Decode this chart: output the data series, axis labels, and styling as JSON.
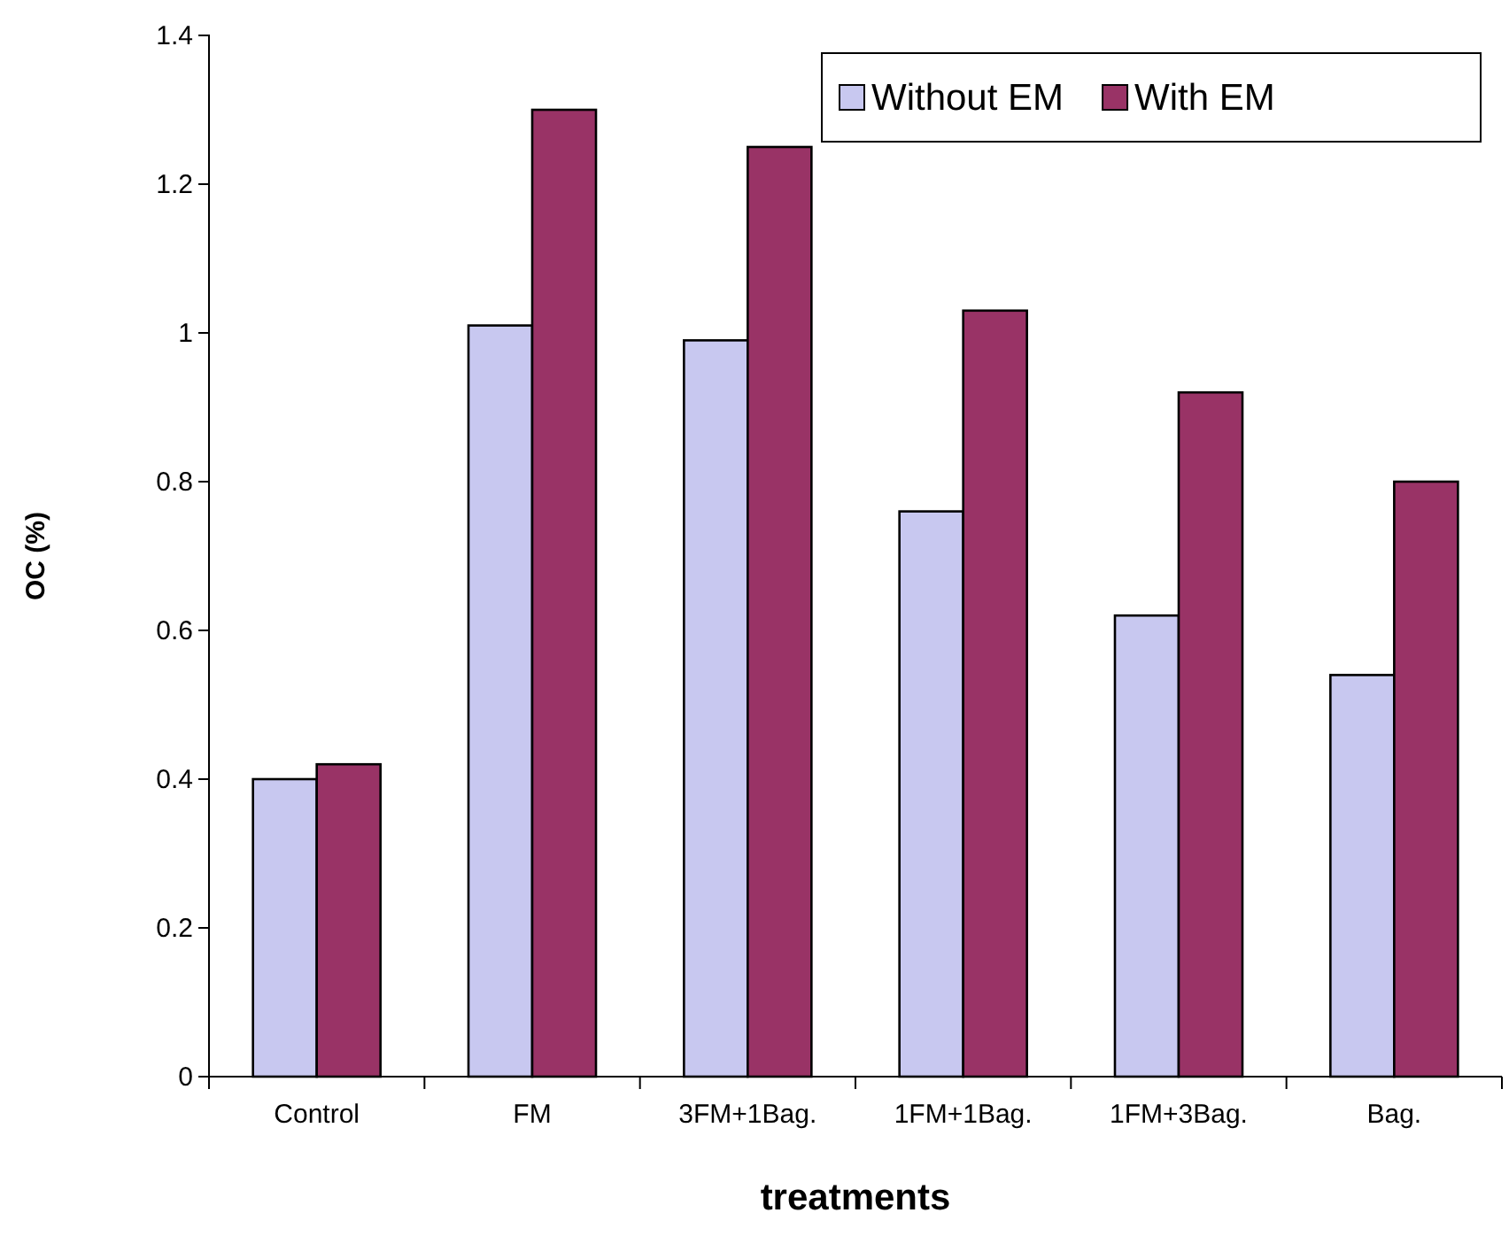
{
  "chart_data": {
    "type": "bar",
    "xlabel": "treatments",
    "ylabel": "OC (%)",
    "categories": [
      "Control",
      "FM",
      "3FM+1Bag.",
      "1FM+1Bag.",
      "1FM+3Bag.",
      "Bag."
    ],
    "series": [
      {
        "name": "Without EM",
        "color": "#c8c8f0",
        "values": [
          0.4,
          1.01,
          0.99,
          0.76,
          0.62,
          0.54
        ]
      },
      {
        "name": "With EM",
        "color": "#993366",
        "values": [
          0.42,
          1.3,
          1.25,
          1.03,
          0.92,
          0.8
        ]
      }
    ],
    "ylim": [
      0,
      1.4
    ],
    "yticks": [
      0,
      {
        "value": 0.2,
        "label": "0.2"
      },
      {
        "value": 0.4,
        "label": "0.4"
      },
      {
        "value": 0.6,
        "label": "0.6"
      },
      {
        "value": 0.8,
        "label": "0.8"
      },
      1,
      {
        "value": 1.2,
        "label": "1.2"
      },
      {
        "value": 1.4,
        "label": "1.4"
      }
    ],
    "grid": false,
    "legend": "top right"
  }
}
